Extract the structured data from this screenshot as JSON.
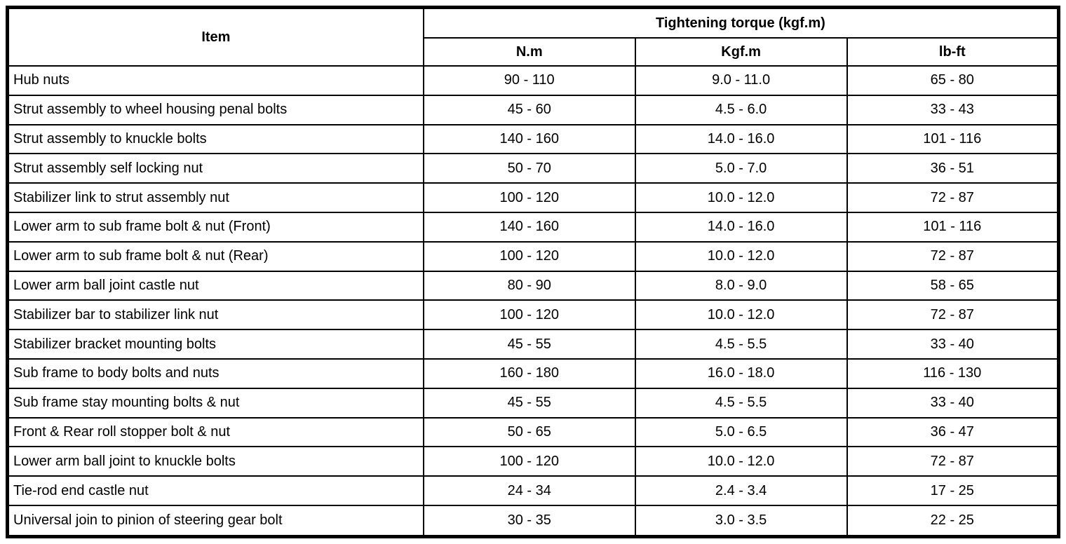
{
  "table": {
    "header": {
      "item_label": "Item",
      "group_label": "Tightening torque (kgf.m)",
      "units": [
        "N.m",
        "Kgf.m",
        "lb-ft"
      ]
    },
    "rows": [
      {
        "item": "Hub nuts",
        "nm": "90 - 110",
        "kgfm": "9.0 - 11.0",
        "lbft": "65 - 80"
      },
      {
        "item": "Strut assembly to wheel housing penal bolts",
        "nm": "45 - 60",
        "kgfm": "4.5 - 6.0",
        "lbft": "33 - 43"
      },
      {
        "item": "Strut assembly to knuckle bolts",
        "nm": "140 - 160",
        "kgfm": "14.0 - 16.0",
        "lbft": "101 - 116"
      },
      {
        "item": "Strut assembly self locking nut",
        "nm": "50 - 70",
        "kgfm": "5.0 - 7.0",
        "lbft": "36 - 51"
      },
      {
        "item": "Stabilizer link to strut assembly nut",
        "nm": "100 - 120",
        "kgfm": "10.0 - 12.0",
        "lbft": "72 - 87"
      },
      {
        "item": "Lower arm to sub frame bolt & nut (Front)",
        "nm": "140 - 160",
        "kgfm": "14.0 - 16.0",
        "lbft": "101 - 116"
      },
      {
        "item": "Lower arm to sub frame bolt & nut (Rear)",
        "nm": "100 - 120",
        "kgfm": "10.0 - 12.0",
        "lbft": "72 - 87"
      },
      {
        "item": "Lower arm ball joint castle nut",
        "nm": "80 - 90",
        "kgfm": "8.0 - 9.0",
        "lbft": "58 - 65"
      },
      {
        "item": "Stabilizer bar to stabilizer link nut",
        "nm": "100 - 120",
        "kgfm": "10.0 - 12.0",
        "lbft": "72 - 87"
      },
      {
        "item": "Stabilizer bracket mounting bolts",
        "nm": "45 - 55",
        "kgfm": "4.5 - 5.5",
        "lbft": "33 - 40"
      },
      {
        "item": "Sub frame to body bolts and nuts",
        "nm": "160 - 180",
        "kgfm": "16.0 - 18.0",
        "lbft": "116 - 130"
      },
      {
        "item": "Sub frame stay mounting bolts & nut",
        "nm": "45 - 55",
        "kgfm": "4.5 - 5.5",
        "lbft": "33 - 40"
      },
      {
        "item": "Front & Rear roll stopper bolt & nut",
        "nm": "50 - 65",
        "kgfm": "5.0 - 6.5",
        "lbft": "36 - 47"
      },
      {
        "item": "Lower arm ball joint to knuckle bolts",
        "nm": "100 - 120",
        "kgfm": "10.0 - 12.0",
        "lbft": "72 - 87"
      },
      {
        "item": "Tie-rod end castle nut",
        "nm": "24 - 34",
        "kgfm": "2.4 - 3.4",
        "lbft": "17 - 25"
      },
      {
        "item": "Universal join to pinion of steering gear bolt",
        "nm": "30 - 35",
        "kgfm": "3.0 - 3.5",
        "lbft": "22 - 25"
      }
    ]
  }
}
